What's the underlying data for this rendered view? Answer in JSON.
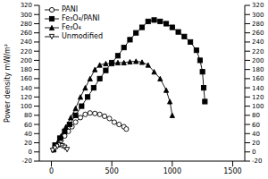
{
  "chart_data": {
    "type": "line",
    "y_label": "Power density mW/m²",
    "xlim": [
      -100,
      1600
    ],
    "xticks": [
      0,
      500,
      1000,
      1500
    ],
    "ylim": [
      -20,
      320
    ],
    "yticks": [
      -20,
      0,
      20,
      40,
      60,
      80,
      100,
      120,
      140,
      160,
      180,
      200,
      220,
      240,
      260,
      280,
      300,
      320
    ],
    "y2lim": [
      -20,
      320
    ],
    "y2ticks": [
      -20,
      0,
      20,
      40,
      60,
      80,
      100,
      120,
      140,
      160,
      180,
      200,
      220,
      240,
      260,
      280,
      300,
      320
    ],
    "grid": false,
    "legend": "upper left",
    "series": [
      {
        "name": "PANI",
        "color": "#000000",
        "marker": "open_circle",
        "x": [
          20,
          50,
          80,
          110,
          140,
          170,
          200,
          240,
          280,
          320,
          360,
          400,
          440,
          480,
          520,
          560,
          600,
          620
        ],
        "values": [
          5,
          15,
          25,
          35,
          45,
          55,
          65,
          75,
          82,
          85,
          84,
          82,
          78,
          73,
          65,
          60,
          55,
          50
        ]
      },
      {
        "name": "Fe₃O₄/PANI",
        "color": "#000000",
        "marker": "filled_square",
        "x": [
          30,
          70,
          110,
          150,
          200,
          250,
          300,
          350,
          400,
          450,
          500,
          550,
          600,
          650,
          700,
          750,
          800,
          850,
          900,
          950,
          1000,
          1050,
          1100,
          1150,
          1200,
          1230,
          1250,
          1260,
          1270
        ],
        "values": [
          15,
          30,
          45,
          60,
          80,
          100,
          120,
          140,
          160,
          178,
          195,
          210,
          228,
          245,
          260,
          272,
          285,
          288,
          285,
          280,
          272,
          262,
          252,
          240,
          222,
          200,
          175,
          140,
          110
        ]
      },
      {
        "name": "Fe₃O₄",
        "color": "#000000",
        "marker": "filled_triangle",
        "x": [
          20,
          50,
          80,
          120,
          160,
          200,
          240,
          280,
          320,
          360,
          400,
          450,
          500,
          550,
          600,
          650,
          700,
          750,
          800,
          850,
          900,
          950,
          980,
          1000
        ],
        "values": [
          5,
          20,
          35,
          55,
          75,
          95,
          120,
          140,
          160,
          180,
          190,
          193,
          193,
          195,
          195,
          197,
          198,
          196,
          190,
          175,
          160,
          135,
          110,
          80
        ]
      },
      {
        "name": "Unmodified",
        "color": "#000000",
        "marker": "open_triangle_down",
        "x": [
          10,
          30,
          50,
          70,
          90,
          110,
          130
        ],
        "values": [
          3,
          8,
          12,
          15,
          13,
          10,
          5
        ]
      }
    ]
  }
}
